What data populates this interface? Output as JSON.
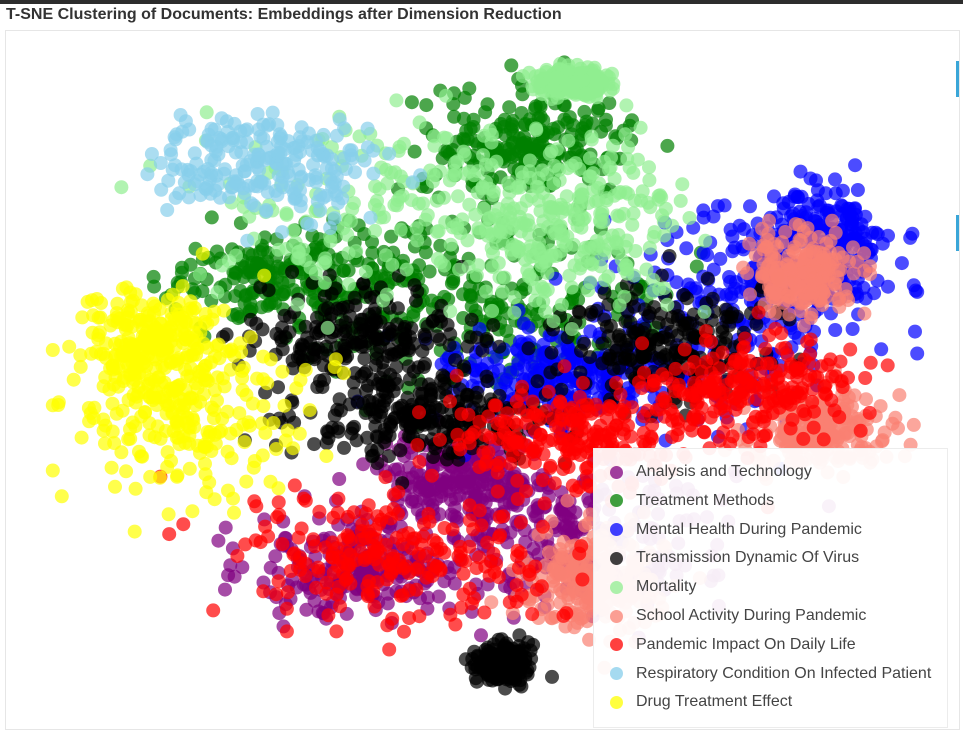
{
  "page": {
    "title": "T-SNE Clustering of Documents: Embeddings after Dimension Reduction"
  },
  "chart_data": {
    "type": "scatter",
    "title": "T-SNE Clustering of Documents: Embeddings after Dimension Reduction",
    "xlabel": "",
    "ylabel": "",
    "grid": false,
    "legend_position": "bottom-right",
    "xlim": [
      0,
      100
    ],
    "ylim": [
      0,
      100
    ],
    "series": [
      {
        "name": "Analysis and Technology",
        "color": "#800080",
        "clusters": [
          {
            "cx": 60,
            "cy": 25,
            "sx": 9,
            "sy": 6
          },
          {
            "cx": 36,
            "cy": 20,
            "sx": 6,
            "sy": 4
          },
          {
            "cx": 48,
            "cy": 34,
            "sx": 5,
            "sy": 3
          }
        ]
      },
      {
        "name": "Treatment Methods",
        "color": "#008000",
        "clusters": [
          {
            "cx": 52,
            "cy": 62,
            "sx": 10,
            "sy": 7
          },
          {
            "cx": 28,
            "cy": 65,
            "sx": 7,
            "sy": 4
          },
          {
            "cx": 55,
            "cy": 86,
            "sx": 6,
            "sy": 4
          }
        ]
      },
      {
        "name": "Mental Health During Pandemic",
        "color": "#0000ff",
        "clusters": [
          {
            "cx": 79,
            "cy": 60,
            "sx": 8,
            "sy": 8
          },
          {
            "cx": 58,
            "cy": 50,
            "sx": 7,
            "sy": 4
          },
          {
            "cx": 88,
            "cy": 70,
            "sx": 4,
            "sy": 5
          }
        ]
      },
      {
        "name": "Transmission Dynamic Of Virus",
        "color": "#000000",
        "clusters": [
          {
            "cx": 44,
            "cy": 43,
            "sx": 7,
            "sy": 3
          },
          {
            "cx": 36,
            "cy": 56,
            "sx": 6,
            "sy": 4
          },
          {
            "cx": 70,
            "cy": 55,
            "sx": 6,
            "sy": 5
          },
          {
            "cx": 52,
            "cy": 5,
            "sx": 1.5,
            "sy": 1.5
          }
        ]
      },
      {
        "name": "Mortality",
        "color": "#90ee90",
        "clusters": [
          {
            "cx": 42,
            "cy": 77,
            "sx": 12,
            "sy": 7
          },
          {
            "cx": 60,
            "cy": 73,
            "sx": 7,
            "sy": 6
          },
          {
            "cx": 60,
            "cy": 96,
            "sx": 2,
            "sy": 1
          }
        ]
      },
      {
        "name": "School Activity During Pandemic",
        "color": "#fa8072",
        "clusters": [
          {
            "cx": 88,
            "cy": 42,
            "sx": 4,
            "sy": 3
          },
          {
            "cx": 86,
            "cy": 66,
            "sx": 3,
            "sy": 3
          },
          {
            "cx": 62,
            "cy": 18,
            "sx": 4,
            "sy": 4
          }
        ]
      },
      {
        "name": "Pandemic Impact On Daily Life",
        "color": "#ff0000",
        "clusters": [
          {
            "cx": 40,
            "cy": 22,
            "sx": 9,
            "sy": 5
          },
          {
            "cx": 60,
            "cy": 40,
            "sx": 7,
            "sy": 4
          },
          {
            "cx": 80,
            "cy": 48,
            "sx": 6,
            "sy": 4
          }
        ]
      },
      {
        "name": "Respiratory Condition On Infected Patient",
        "color": "#87ceeb",
        "clusters": [
          {
            "cx": 25,
            "cy": 83,
            "sx": 6,
            "sy": 4
          }
        ]
      },
      {
        "name": "Drug Treatment Effect",
        "color": "#ffff00",
        "clusters": [
          {
            "cx": 16,
            "cy": 44,
            "sx": 7,
            "sy": 7
          },
          {
            "cx": 12,
            "cy": 55,
            "sx": 4,
            "sy": 4
          }
        ]
      }
    ]
  }
}
